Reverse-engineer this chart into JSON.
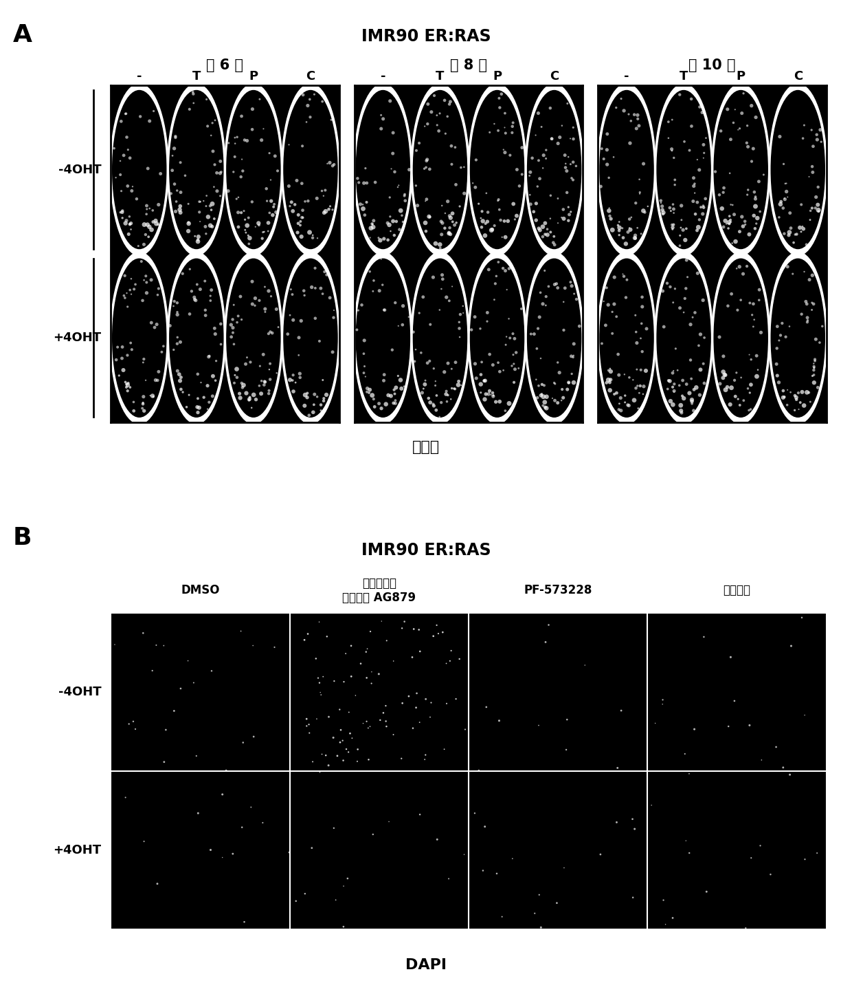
{
  "fig_width": 12.4,
  "fig_height": 14.61,
  "bg_color": "#ffffff",
  "panel_A": {
    "label": "A",
    "title": "IMR90 ER:RAS",
    "day_labels": [
      "第 6 天",
      "第 8 天",
      "第 10 天"
    ],
    "col_labels": [
      "-",
      "T",
      "P",
      "C"
    ],
    "row_labels": [
      "-4OHT",
      "+4OHT"
    ],
    "xlabel": "结晶紫",
    "image_color": "#000000",
    "border_color": "#000000"
  },
  "panel_B": {
    "label": "B",
    "title": "IMR90 ER:RAS",
    "col_labels_line1": [
      "酥氨酸磷酸",
      "",
      "",
      ""
    ],
    "col_labels_line2": [
      "化抑制剂 AG879",
      "",
      "",
      ""
    ],
    "col_labels": [
      "DMSO",
      "酥氨酸磷酸\n化抑制剂 AG879",
      "PF-573228",
      "环孢菌素"
    ],
    "row_labels": [
      "-4OHT",
      "+4OHT"
    ],
    "xlabel": "DAPI",
    "image_color": "#000000",
    "border_color": "#ffffff",
    "grid_color": "#ffffff"
  }
}
